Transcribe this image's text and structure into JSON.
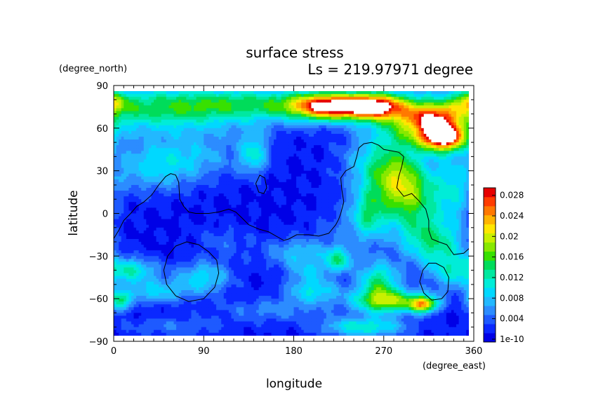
{
  "chart_data": {
    "type": "heatmap",
    "title": "surface stress",
    "subtitle": "Ls = 219.97971 degree",
    "xlabel": "longitude",
    "ylabel": "latitude",
    "xunit": "(degree_east)",
    "yunit": "(degree_north)",
    "xlim": [
      0,
      360
    ],
    "ylim": [
      -90,
      90
    ],
    "xticks": [
      "0",
      "90",
      "180",
      "270",
      "360"
    ],
    "yticks": [
      "90",
      "60",
      "30",
      "0",
      "−30",
      "−60",
      "−90"
    ],
    "colorbar": {
      "labels": [
        "1e-10",
        "0.004",
        "0.008",
        "0.012",
        "0.016",
        "0.02",
        "0.024",
        "0.028"
      ],
      "colors": [
        "#0000e6",
        "#0a28ff",
        "#1e5aff",
        "#2c8cff",
        "#22b8ff",
        "#00d8ff",
        "#00ecd8",
        "#00e8a0",
        "#00dc5a",
        "#38e000",
        "#88e800",
        "#c8f000",
        "#ffe600",
        "#ffb400",
        "#ff7800",
        "#ff3c00",
        "#e60000"
      ]
    },
    "grid": false,
    "legend": "right"
  }
}
